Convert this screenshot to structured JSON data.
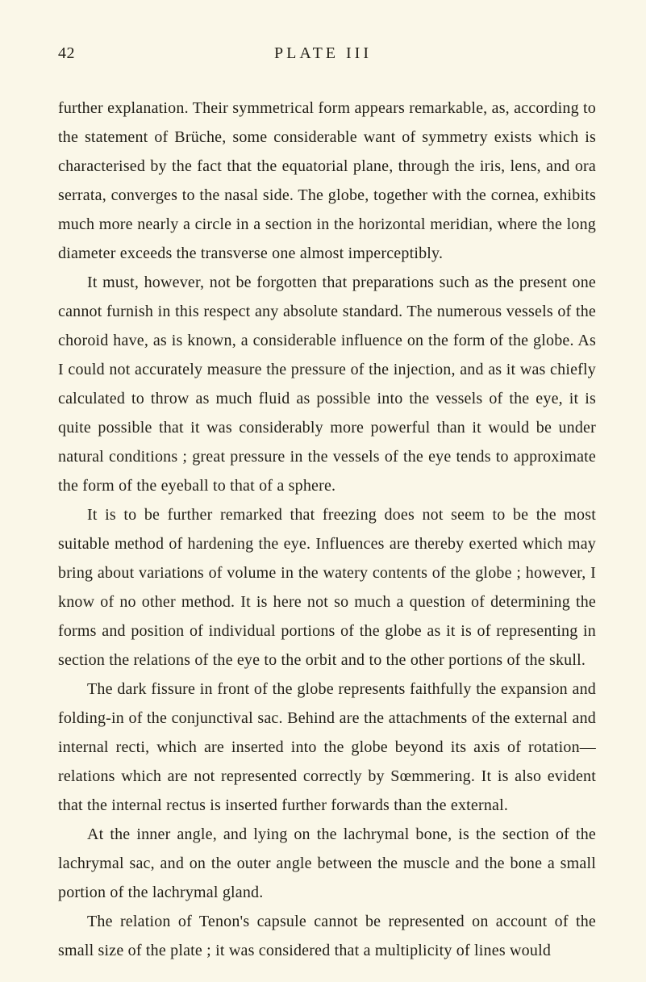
{
  "page": {
    "number": "42",
    "plate": "PLATE III"
  },
  "paragraphs": {
    "p1": "further explanation. Their symmetrical form appears remarkable, as, according to the statement of Brüche, some considerable want of symmetry exists which is characterised by the fact that the equatorial plane, through the iris, lens, and ora serrata, converges to the nasal side. The globe, together with the cornea, exhibits much more nearly a circle in a section in the horizontal meridian, where the long diameter exceeds the transverse one almost imperceptibly.",
    "p2": "It must, however, not be forgotten that preparations such as the present one cannot furnish in this respect any absolute standard. The numerous vessels of the choroid have, as is known, a considerable influence on the form of the globe. As I could not accurately measure the pressure of the injection, and as it was chiefly calculated to throw as much fluid as possible into the vessels of the eye, it is quite possible that it was considerably more powerful than it would be under natural conditions ; great pressure in the vessels of the eye tends to approximate the form of the eyeball to that of a sphere.",
    "p3": "It is to be further remarked that freezing does not seem to be the most suitable method of hardening the eye. Influences are thereby exerted which may bring about variations of volume in the watery contents of the globe ; however, I know of no other method. It is here not so much a question of determining the forms and position of individual portions of the globe as it is of representing in section the relations of the eye to the orbit and to the other portions of the skull.",
    "p4": "The dark fissure in front of the globe represents faithfully the expansion and folding-in of the conjunctival sac. Behind are the attachments of the external and internal recti, which are inserted into the globe beyond its axis of rotation—relations which are not represented correctly by Sœmmering. It is also evident that the internal rectus is inserted further forwards than the external.",
    "p5": "At the inner angle, and lying on the lachrymal bone, is the section of the lachrymal sac, and on the outer angle between the muscle and the bone a small portion of the lachrymal gland.",
    "p6": "The relation of Tenon's capsule cannot be represented on account of the small size of the plate ; it was considered that a multiplicity of lines would"
  },
  "colors": {
    "paper": "#faf7e8",
    "ink": "#232018"
  },
  "typography": {
    "body_fontsize": 20,
    "line_height": 36,
    "text_indent": 36,
    "title_letterspacing": 4
  }
}
